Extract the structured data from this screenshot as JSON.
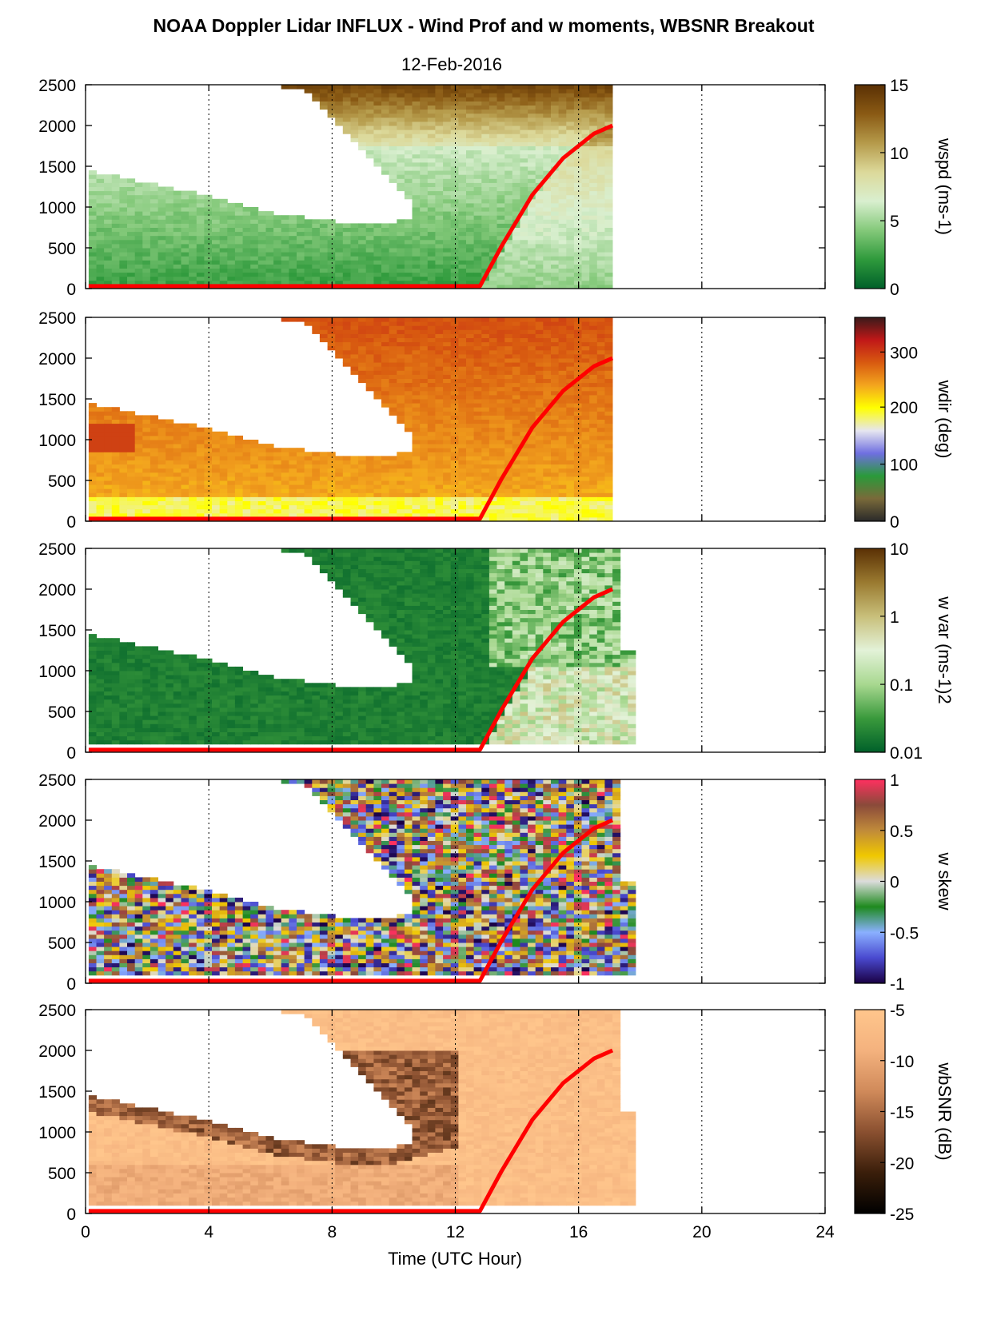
{
  "title": "NOAA Doppler Lidar INFLUX - Wind Prof and w moments, WBSNR Breakout",
  "subtitle": "12-Feb-2016",
  "chart_data": {
    "type": "heatmap",
    "x_axis": {
      "label": "Time (UTC Hour)",
      "range": [
        0,
        24
      ],
      "ticks": [
        0,
        4,
        8,
        12,
        16,
        20,
        24
      ],
      "tick_labels": [
        "0",
        "4",
        "8",
        "12",
        "16",
        "20",
        "24"
      ],
      "grid": "dotted vertical at each tick"
    },
    "y_axis": {
      "range": [
        0,
        2500
      ],
      "ticks": [
        0,
        500,
        1000,
        1500,
        2000,
        2500
      ],
      "tick_labels": [
        "0",
        "500",
        "1000",
        "1500",
        "2000",
        "2500"
      ]
    },
    "overlay_line": {
      "color": "#ff0000",
      "points": [
        [
          0.1,
          30
        ],
        [
          12.8,
          30
        ],
        [
          13.5,
          520
        ],
        [
          14.5,
          1150
        ],
        [
          15.5,
          1600
        ],
        [
          16.5,
          1900
        ],
        [
          17.1,
          2000
        ]
      ]
    },
    "data_extent": {
      "start_hour": 0.1,
      "end_hour_wind": 17.1,
      "end_hour_w": 17.7,
      "profile_top": [
        [
          0.1,
          1400
        ],
        [
          1,
          1350
        ],
        [
          2,
          1260
        ],
        [
          3,
          1180
        ],
        [
          4,
          1100
        ],
        [
          5,
          1000
        ],
        [
          6,
          900
        ],
        [
          7,
          850
        ],
        [
          8,
          800
        ],
        [
          9,
          780
        ],
        [
          10,
          800
        ],
        [
          11,
          900
        ],
        [
          12,
          1000
        ]
      ],
      "upper_layer": [
        [
          5.4,
          2500
        ],
        [
          7,
          2400
        ],
        [
          8,
          2000
        ],
        [
          9,
          1600
        ],
        [
          10,
          1200
        ],
        [
          10.5,
          1000
        ]
      ]
    },
    "panels": [
      {
        "variable": "wspd",
        "colorbar_label": "wspd (ms-1)",
        "colorbar_ticks": [
          "0",
          "5",
          "10",
          "15"
        ],
        "colorbar_colors": [
          "#00602a",
          "#2f9a3c",
          "#84c97a",
          "#d9efcf",
          "#dcd99a",
          "#b59a4a",
          "#8a5a14",
          "#5a3004"
        ]
      },
      {
        "variable": "wdir",
        "colorbar_label": "wdir (deg)",
        "colorbar_ticks": [
          "0",
          "100",
          "200",
          "300"
        ],
        "colorbar_colors": [
          "#2a2a2a",
          "#7a6a3a",
          "#2a9a3a",
          "#6f6fe0",
          "#e6e6f0",
          "#ffff00",
          "#f3a51e",
          "#d85a10",
          "#c01818",
          "#3a1a1a"
        ]
      },
      {
        "variable": "w var",
        "colorbar_label": "w var (ms-1)2",
        "colorbar_ticks": [
          "0.01",
          "0.1",
          "1",
          "10"
        ],
        "colorbar_colors": [
          "#00602a",
          "#3a9a3c",
          "#a8d890",
          "#e3f2d8",
          "#c8bf7a",
          "#9a7a30",
          "#5a3004"
        ]
      },
      {
        "variable": "w skew",
        "colorbar_label": "w skew",
        "colorbar_ticks": [
          "-1",
          "-0.5",
          "0",
          "0.5",
          "1"
        ],
        "colorbar_colors": [
          "#1a0044",
          "#4a4ad0",
          "#8ab0ff",
          "#1e8a1e",
          "#dcdcdc",
          "#f0c800",
          "#c08a3a",
          "#8a4a3a",
          "#ff3060"
        ]
      },
      {
        "variable": "wbSNR",
        "colorbar_label": "wbSNR (dB)",
        "colorbar_ticks": [
          "-25",
          "-20",
          "-15",
          "-10",
          "-5"
        ],
        "colorbar_colors": [
          "#000000",
          "#3a1e0a",
          "#8a5030",
          "#d08a5a",
          "#f4b27e",
          "#ffc68c"
        ]
      }
    ]
  }
}
